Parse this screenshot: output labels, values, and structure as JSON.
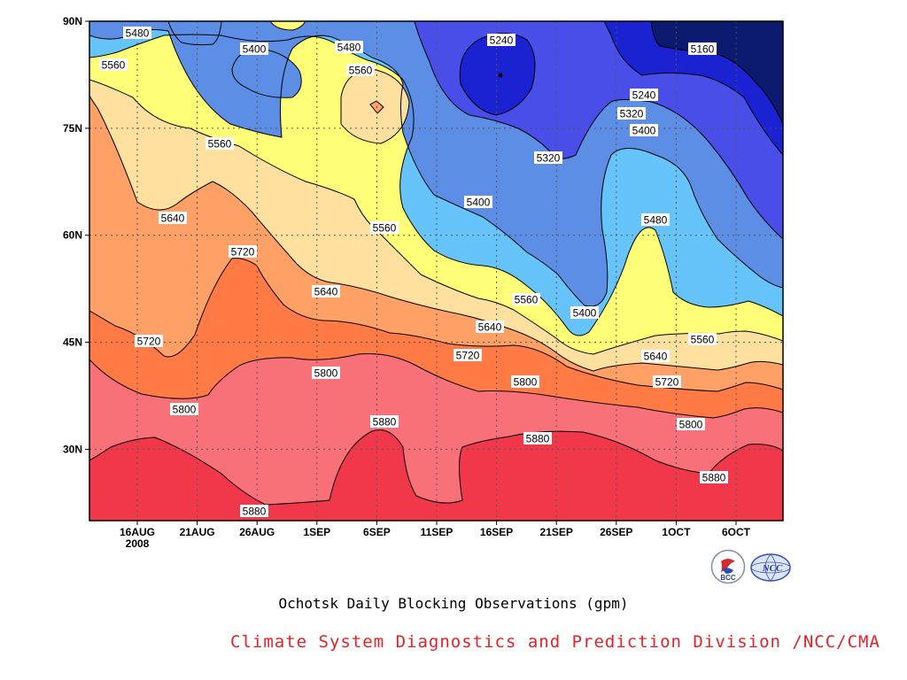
{
  "chart_data": {
    "type": "contour",
    "title": "Ochotsk Daily Blocking Observations (gpm)",
    "x_ticks": [
      "16AUG",
      "21AUG",
      "26AUG",
      "1SEP",
      "6SEP",
      "11SEP",
      "16SEP",
      "21SEP",
      "26SEP",
      "1OCT",
      "6OCT"
    ],
    "x_year": "2008",
    "y_ticks": [
      "30N",
      "45N",
      "60N",
      "75N",
      "90N"
    ],
    "ylim": [
      20,
      90
    ],
    "levels": [
      5160,
      5240,
      5320,
      5400,
      5480,
      5560,
      5640,
      5720,
      5800,
      5880
    ],
    "level_colors": {
      "5160": "#0b1a6e",
      "5240": "#1a22d2",
      "5320": "#4a4ee8",
      "5400": "#5c8ee6",
      "5480": "#66c4fa",
      "5560": "#ffff78",
      "5640": "#ffe09e",
      "5720": "#ffa066",
      "5800": "#ff7a44",
      "5880": "#f87078",
      "max": "#f0384a"
    },
    "contour_labels": [
      {
        "value": "5480"
      },
      {
        "value": "5560"
      },
      {
        "value": "5400"
      },
      {
        "value": "5480"
      },
      {
        "value": "5560"
      },
      {
        "value": "5240"
      },
      {
        "value": "5160"
      },
      {
        "value": "5240"
      },
      {
        "value": "5320"
      },
      {
        "value": "5400"
      },
      {
        "value": "5560"
      },
      {
        "value": "5320"
      },
      {
        "value": "5400"
      },
      {
        "value": "5640"
      },
      {
        "value": "5560"
      },
      {
        "value": "5480"
      },
      {
        "value": "5720"
      },
      {
        "value": "5640"
      },
      {
        "value": "5560"
      },
      {
        "value": "5400"
      },
      {
        "value": "5720"
      },
      {
        "value": "5640"
      },
      {
        "value": "5560"
      },
      {
        "value": "5720"
      },
      {
        "value": "5640"
      },
      {
        "value": "5800"
      },
      {
        "value": "5800"
      },
      {
        "value": "5720"
      },
      {
        "value": "5800"
      },
      {
        "value": "5880"
      },
      {
        "value": "5880"
      },
      {
        "value": "5800"
      },
      {
        "value": "5880"
      },
      {
        "value": "5880"
      }
    ]
  },
  "footer": {
    "credit": "Climate System Diagnostics and Prediction Division /NCC/CMA",
    "logo_left_text": "BCC",
    "logo_right_text": "NCC"
  }
}
